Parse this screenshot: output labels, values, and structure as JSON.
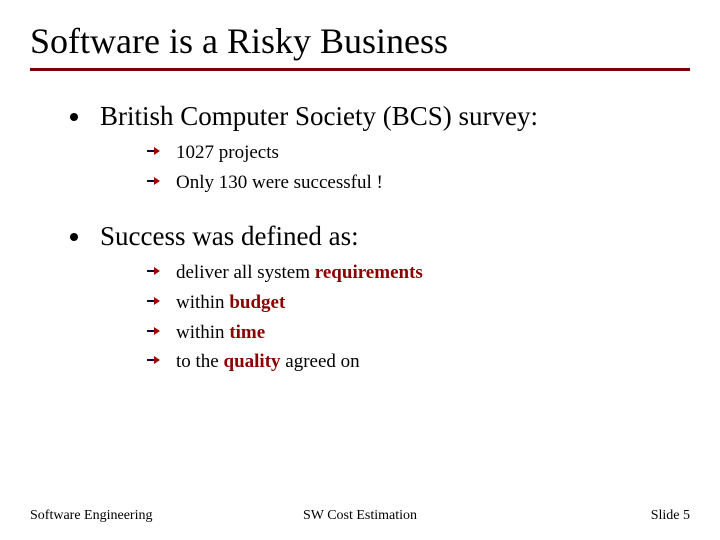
{
  "title": "Software is a Risky Business",
  "colors": {
    "underline": "#7f0000",
    "arrow_dark": "#0b0b3b",
    "arrow_red": "#a00000",
    "highlight_text": "#8b0000",
    "text": "#000000",
    "background": "#ffffff"
  },
  "typography": {
    "title_fontsize_pt": 28,
    "level1_fontsize_pt": 20,
    "level2_fontsize_pt": 14,
    "footer_fontsize_pt": 11,
    "family": "Times New Roman"
  },
  "items": [
    {
      "text": "British Computer Society (BCS) survey:",
      "sub": [
        {
          "runs": [
            {
              "t": "1027 projects"
            }
          ]
        },
        {
          "runs": [
            {
              "t": "Only 130 were successful  !"
            }
          ]
        }
      ]
    },
    {
      "text": "Success was defined as:",
      "sub": [
        {
          "runs": [
            {
              "t": "deliver all system "
            },
            {
              "t": "requirements",
              "bold": true,
              "color": "#8b0000"
            }
          ]
        },
        {
          "runs": [
            {
              "t": "within "
            },
            {
              "t": "budget",
              "bold": true,
              "color": "#8b0000"
            }
          ]
        },
        {
          "runs": [
            {
              "t": "within "
            },
            {
              "t": "time",
              "bold": true,
              "color": "#8b0000"
            }
          ]
        },
        {
          "runs": [
            {
              "t": "to the "
            },
            {
              "t": "quality",
              "bold": true,
              "color": "#8b0000"
            },
            {
              "t": " agreed  on"
            }
          ]
        }
      ]
    }
  ],
  "footer": {
    "left": "Software Engineering",
    "center": "SW Cost Estimation",
    "right": "Slide 5"
  }
}
